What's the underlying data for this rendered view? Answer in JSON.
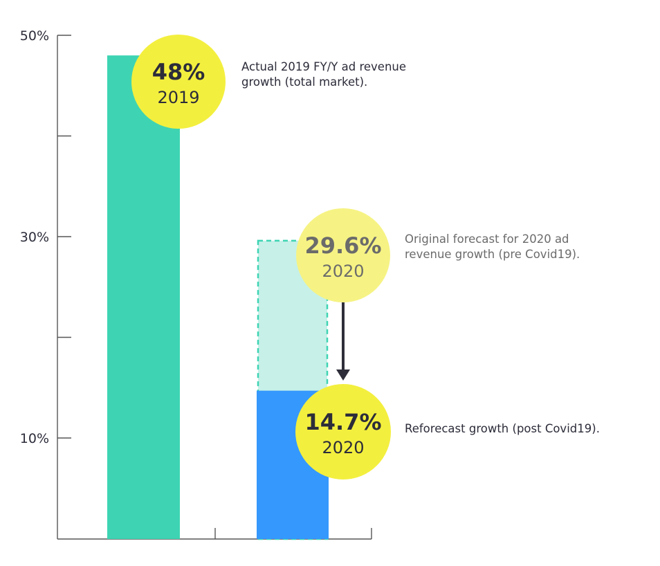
{
  "chart_data": {
    "type": "bar",
    "ylim": [
      0,
      50
    ],
    "y_ticks": [
      {
        "value": 50,
        "label": "50%"
      },
      {
        "value": 40,
        "label": ""
      },
      {
        "value": 30,
        "label": "30%"
      },
      {
        "value": 20,
        "label": ""
      },
      {
        "value": 10,
        "label": "10%"
      }
    ],
    "grid": false,
    "bars": [
      {
        "id": "bar-2019",
        "value": 48,
        "style": "solid",
        "color": "#3ed4b3"
      },
      {
        "id": "bar-2020-original",
        "value": 29.6,
        "style": "dashed",
        "color": "#c6f0e8",
        "stroke": "#3ed4b3"
      },
      {
        "id": "bar-2020-reforecast",
        "value": 14.7,
        "style": "solid",
        "color": "#3598fd"
      }
    ],
    "bubbles": [
      {
        "id": "bubble-2019",
        "value_label": "48%",
        "year": "2019",
        "color": "#f3ef3e",
        "faded": false
      },
      {
        "id": "bubble-2020-original",
        "value_label": "29.6%",
        "year": "2020",
        "color": "#f6f384",
        "faded": true
      },
      {
        "id": "bubble-2020-reforecast",
        "value_label": "14.7%",
        "year": "2020",
        "color": "#f3ef3e",
        "faded": false
      }
    ],
    "annotations": [
      {
        "id": "note-2019",
        "lines": [
          "Actual 2019 FY/Y ad revenue",
          "growth (total market)."
        ],
        "muted": false
      },
      {
        "id": "note-original",
        "lines": [
          "Original forecast for 2020 ad",
          "revenue growth (pre Covid19)."
        ],
        "muted": true
      },
      {
        "id": "note-reforecast",
        "lines": [
          "Reforecast growth (post Covid19)."
        ],
        "muted": false
      }
    ],
    "arrow": {
      "from": "bar-2020-original",
      "to": "bar-2020-reforecast",
      "color": "#2e2e3a"
    },
    "colors": {
      "axis": "#555555",
      "text": "#2c2c3a",
      "muted_text": "#6b6b6b"
    }
  }
}
